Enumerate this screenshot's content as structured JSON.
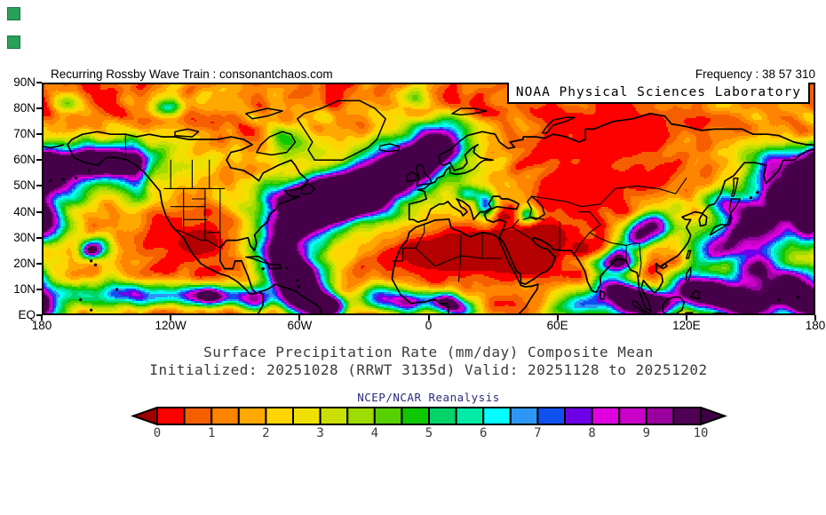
{
  "header": {
    "left_text": "Recurring Rossby Wave Train : consonantchaos.com",
    "right_text": "Frequency : 38 57 310"
  },
  "banner": {
    "text": "NOAA Physical Sciences Laboratory"
  },
  "map": {
    "y_axis_labels": [
      "90N",
      "80N",
      "70N",
      "60N",
      "50N",
      "40N",
      "30N",
      "20N",
      "10N",
      "EQ"
    ],
    "y_axis_lats": [
      90,
      80,
      70,
      60,
      50,
      40,
      30,
      20,
      10,
      0
    ],
    "x_axis_labels": [
      "180",
      "120W",
      "60W",
      "0",
      "60E",
      "120E",
      "180"
    ],
    "x_axis_lons": [
      -180,
      -120,
      -60,
      0,
      60,
      120,
      180
    ]
  },
  "titles": {
    "line1": "Surface Precipitation Rate (mm/day) Composite Mean",
    "line2": "Initialized: 20251028 (RRWT 3135d) Valid: 20251128 to 20251202",
    "source": "NCEP/NCAR Reanalysis"
  },
  "colorbar": {
    "tick_labels": [
      "0",
      "1",
      "2",
      "3",
      "4",
      "5",
      "6",
      "7",
      "8",
      "9",
      "10"
    ],
    "segment_colors": [
      "#fd0000",
      "#f65f00",
      "#ff8400",
      "#ffa800",
      "#ffd400",
      "#f0e000",
      "#cce000",
      "#9cdc00",
      "#58d000",
      "#10c800",
      "#00d468",
      "#00eca6",
      "#00ffff",
      "#2e96f5",
      "#0f50f0",
      "#6e00e8",
      "#e000e0",
      "#c800c8",
      "#9a00a0",
      "#500055"
    ],
    "under_arrow_color": "#9e0000",
    "over_arrow_color": "#3f0045",
    "below_min_map_color": "#b40000",
    "above_max_map_color": "#46004a"
  },
  "chart_data": {
    "type": "heatmap",
    "title": "Surface Precipitation Rate (mm/day) Composite Mean",
    "units": "mm/day",
    "value_min": 0,
    "value_max": 10,
    "contour_interval": 0.5,
    "lat_range": [
      "EQ",
      "90N"
    ],
    "lon_range": [
      "180",
      "180"
    ],
    "legend_position": "bottom",
    "notable_features": [
      "Dry (near 0 mm/day) dark-red zones over Sahara, Arabia, Iran and interior Mexico",
      "High precipitation (>10 mm/day) purple band along North Atlantic storm track toward UK/Iceland",
      "High precipitation blob in Gulf of Alaska",
      "Heavy tropical rain (ITCZ) across Central America, Gulf of Guinea, Bay of Bengal, Maritime Continent and western Pacific",
      "Mostly orange/red (0.5-1.5 mm/day) background elsewhere"
    ]
  }
}
